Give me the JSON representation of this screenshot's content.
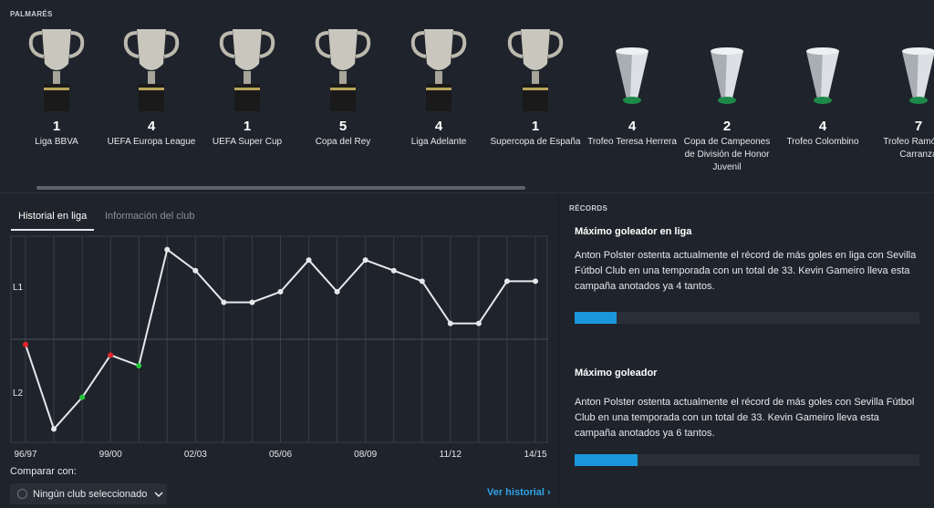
{
  "palmares": {
    "title": "PALMARÉS",
    "trophies": [
      {
        "count": "1",
        "name": "Liga BBVA",
        "icon": "trophy-icon"
      },
      {
        "count": "4",
        "name": "UEFA Europa League",
        "icon": "trophy-icon"
      },
      {
        "count": "1",
        "name": "UEFA Super Cup",
        "icon": "trophy-icon"
      },
      {
        "count": "5",
        "name": "Copa del Rey",
        "icon": "trophy-icon"
      },
      {
        "count": "4",
        "name": "Liga Adelante",
        "icon": "trophy-icon"
      },
      {
        "count": "1",
        "name": "Supercopa de España",
        "icon": "trophy-icon"
      },
      {
        "count": "4",
        "name": "Trofeo Teresa Herrera",
        "icon": "placeholder-trophy-icon"
      },
      {
        "count": "2",
        "name": "Copa de Campeones de División de Honor Juvenil",
        "icon": "placeholder-trophy-icon"
      },
      {
        "count": "4",
        "name": "Trofeo Colombino",
        "icon": "placeholder-trophy-icon"
      },
      {
        "count": "7",
        "name": "Trofeo Ramón de Carranza",
        "icon": "placeholder-trophy-icon"
      }
    ]
  },
  "history": {
    "tabs": [
      "Historial en liga",
      "Información del club"
    ],
    "compare_label": "Comparar con:",
    "compare_value": "Ningún club seleccionado",
    "view_history": "Ver historial"
  },
  "chart_data": {
    "type": "line",
    "x": [
      "96/97",
      "97/98",
      "98/99",
      "99/00",
      "00/01",
      "01/02",
      "02/03",
      "03/04",
      "04/05",
      "05/06",
      "06/07",
      "07/08",
      "08/09",
      "09/10",
      "10/11",
      "11/12",
      "12/13",
      "13/14",
      "14/15"
    ],
    "x_tick_labels": [
      "96/97",
      "99/00",
      "02/03",
      "05/06",
      "08/09",
      "11/12",
      "14/15"
    ],
    "y_tick_labels": [
      "L1",
      "L2"
    ],
    "series": [
      {
        "values": [
          11,
          19,
          16,
          12,
          13,
          2,
          4,
          7,
          7,
          6,
          3,
          6,
          3,
          4,
          5,
          9,
          9,
          5,
          5
        ],
        "point_status": [
          "down",
          "",
          "up",
          "down",
          "up",
          "",
          "",
          "",
          "",
          "",
          "",
          "",
          "",
          "",
          "",
          "",
          "",
          "",
          ""
        ]
      }
    ],
    "colors": {
      "line": "#e6e8ec",
      "up": "#22c83a",
      "down": "#e0252a"
    }
  },
  "records": {
    "title": "RÉCORDS",
    "items": [
      {
        "heading": "Máximo goleador en liga",
        "text": "Anton Polster ostenta actualmente el récord de más goles en liga con Sevilla Fútbol Club en una temporada con un total de 33. Kevin Gameiro lleva esta campaña anotados ya 4 tantos.",
        "progress": 0.121
      },
      {
        "heading": "Máximo goleador",
        "text": "Anton Polster ostenta actualmente el récord de más goles con Sevilla Fútbol Club en una temporada con un total de 33. Kevin Gameiro lleva esta campaña anotados ya 6 tantos.",
        "progress": 0.182
      }
    ]
  }
}
